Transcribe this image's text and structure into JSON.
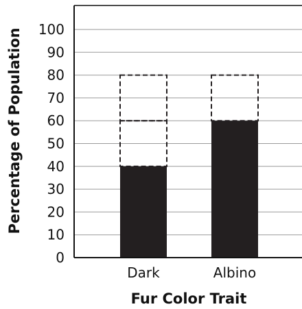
{
  "chart_data": {
    "type": "bar",
    "xlabel": "Fur Color Trait",
    "ylabel": "Percentage of Population",
    "ylim": [
      0,
      100
    ],
    "yticks": [
      0,
      10,
      20,
      30,
      40,
      50,
      60,
      70,
      80,
      90,
      100
    ],
    "grid": true,
    "categories": [
      "Dark",
      "Albino"
    ],
    "values": [
      40,
      60
    ],
    "dashed_segments": [
      {
        "category": "Dark",
        "from": 40,
        "to": 60
      },
      {
        "category": "Dark",
        "from": 60,
        "to": 80
      },
      {
        "category": "Albino",
        "from": 60,
        "to": 80
      }
    ],
    "colors": {
      "bar": "#231f20",
      "grid": "#9a9a9a",
      "axis": "#111111"
    }
  }
}
